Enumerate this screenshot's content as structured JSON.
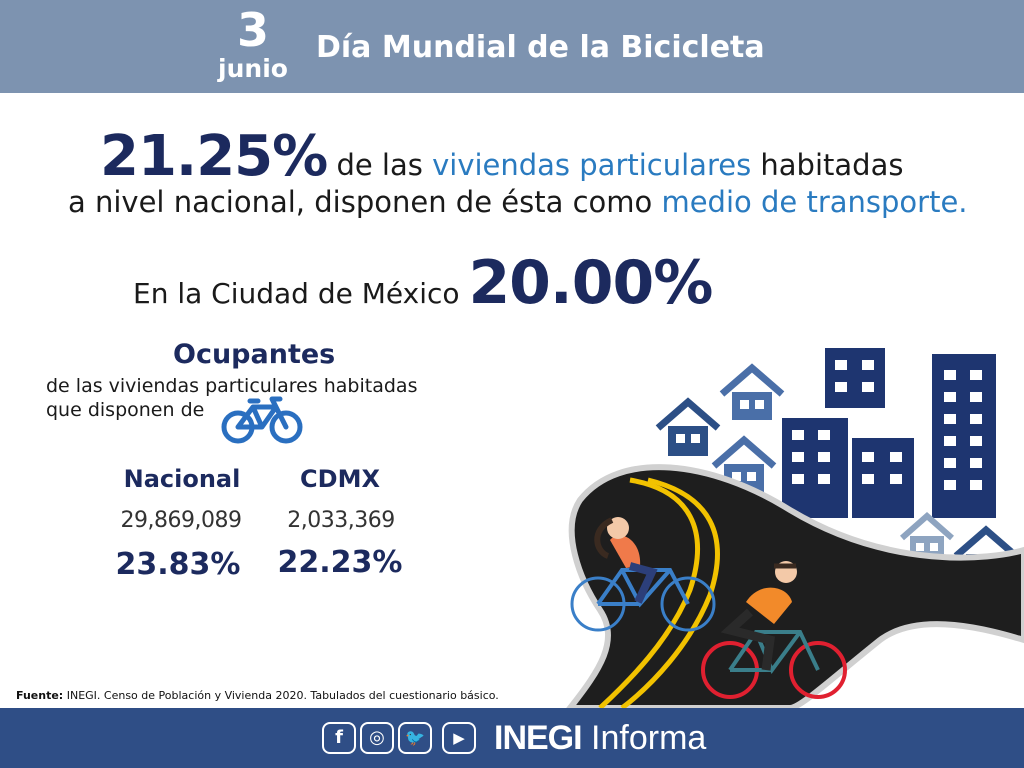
{
  "header": {
    "day": "3",
    "month": "junio",
    "title": "Día Mundial de la Bicicleta"
  },
  "headline": {
    "national_percent": "21.25%",
    "line1_text": " de las ",
    "line1_accent": "viviendas particulares",
    "line1_end": " habitadas",
    "line2_text": "a nivel nacional, disponen de ésta como ",
    "line2_accent": "medio de transporte.",
    "cdmx_text": "En la Ciudad de México ",
    "cdmx_percent": "20.00%"
  },
  "occupants": {
    "title": "Ocupantes",
    "line1": "de las viviendas particulares habitadas",
    "line2": "que disponen de",
    "national": {
      "label": "Nacional",
      "count": "29,869,089",
      "percent": "23.83%"
    },
    "cdmx": {
      "label": "CDMX",
      "count": "2,033,369",
      "percent": "22.23%"
    }
  },
  "source": {
    "label": "Fuente:",
    "text": " INEGI. Censo de Población y Vivienda 2020. Tabulados del cuestionario básico."
  },
  "footer": {
    "social": [
      {
        "icon": "facebook-icon",
        "glyph": "f"
      },
      {
        "icon": "instagram-icon",
        "glyph": "◎"
      },
      {
        "icon": "twitter-icon",
        "glyph": "🐦"
      },
      {
        "icon": "youtube-icon",
        "glyph": "▶"
      }
    ],
    "brand_bold": "INEGI",
    "brand_light": "Informa"
  },
  "colors": {
    "header": "#7d93b0",
    "navy": "#1c2a5e",
    "accent": "#2a7bc0",
    "footer": "#2f4e86",
    "road": "#1e1e1e",
    "road_line": "#f2c200"
  }
}
